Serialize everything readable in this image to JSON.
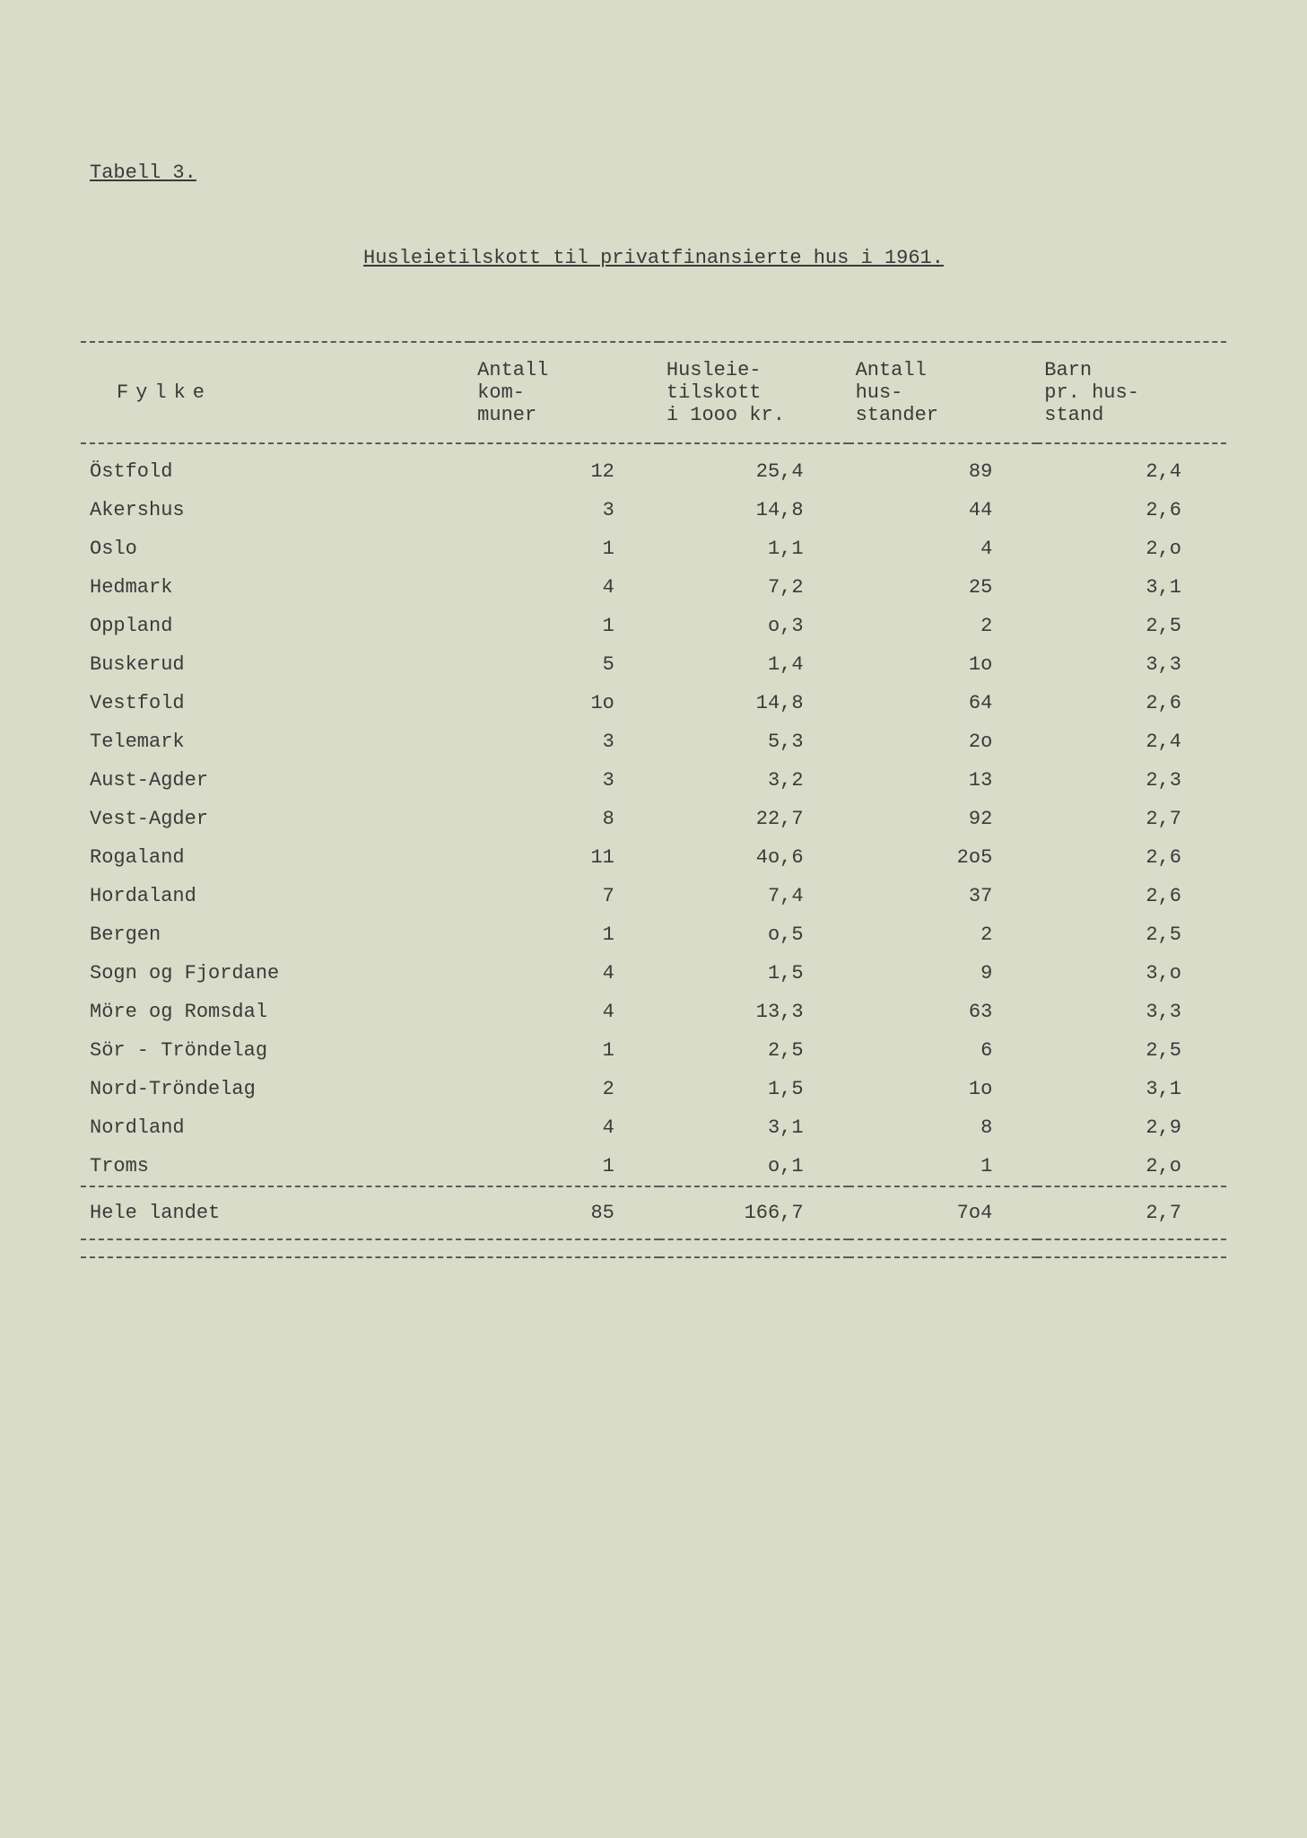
{
  "table_label": "Tabell 3.",
  "title": "Husleietilskott til privatfinansierte hus i 1961.",
  "columns": {
    "fylke": "Fylke",
    "kommuner": "Antall\nkom-\nmuner",
    "tilskott": "Husleie-\ntilskott\ni 1ooo kr.",
    "husstander": "Antall\nhus-\nstander",
    "barn": "Barn\npr. hus-\nstand"
  },
  "rows": [
    {
      "fylke": "Östfold",
      "kommuner": "12",
      "tilskott": "25,4",
      "husstander": "89",
      "barn": "2,4"
    },
    {
      "fylke": "Akershus",
      "kommuner": "3",
      "tilskott": "14,8",
      "husstander": "44",
      "barn": "2,6"
    },
    {
      "fylke": "Oslo",
      "kommuner": "1",
      "tilskott": "1,1",
      "husstander": "4",
      "barn": "2,o"
    },
    {
      "fylke": "Hedmark",
      "kommuner": "4",
      "tilskott": "7,2",
      "husstander": "25",
      "barn": "3,1"
    },
    {
      "fylke": "Oppland",
      "kommuner": "1",
      "tilskott": "o,3",
      "husstander": "2",
      "barn": "2,5"
    },
    {
      "fylke": "Buskerud",
      "kommuner": "5",
      "tilskott": "1,4",
      "husstander": "1o",
      "barn": "3,3"
    },
    {
      "fylke": "Vestfold",
      "kommuner": "1o",
      "tilskott": "14,8",
      "husstander": "64",
      "barn": "2,6"
    },
    {
      "fylke": "Telemark",
      "kommuner": "3",
      "tilskott": "5,3",
      "husstander": "2o",
      "barn": "2,4"
    },
    {
      "fylke": "Aust-Agder",
      "kommuner": "3",
      "tilskott": "3,2",
      "husstander": "13",
      "barn": "2,3"
    },
    {
      "fylke": "Vest-Agder",
      "kommuner": "8",
      "tilskott": "22,7",
      "husstander": "92",
      "barn": "2,7"
    },
    {
      "fylke": "Rogaland",
      "kommuner": "11",
      "tilskott": "4o,6",
      "husstander": "2o5",
      "barn": "2,6"
    },
    {
      "fylke": "Hordaland",
      "kommuner": "7",
      "tilskott": "7,4",
      "husstander": "37",
      "barn": "2,6"
    },
    {
      "fylke": "Bergen",
      "kommuner": "1",
      "tilskott": "o,5",
      "husstander": "2",
      "barn": "2,5"
    },
    {
      "fylke": "Sogn og Fjordane",
      "kommuner": "4",
      "tilskott": "1,5",
      "husstander": "9",
      "barn": "3,o"
    },
    {
      "fylke": "Möre og Romsdal",
      "kommuner": "4",
      "tilskott": "13,3",
      "husstander": "63",
      "barn": "3,3"
    },
    {
      "fylke": "Sör - Tröndelag",
      "kommuner": "1",
      "tilskott": "2,5",
      "husstander": "6",
      "barn": "2,5"
    },
    {
      "fylke": "Nord-Tröndelag",
      "kommuner": "2",
      "tilskott": "1,5",
      "husstander": "1o",
      "barn": "3,1"
    },
    {
      "fylke": "Nordland",
      "kommuner": "4",
      "tilskott": "3,1",
      "husstander": "8",
      "barn": "2,9"
    },
    {
      "fylke": "Troms",
      "kommuner": "1",
      "tilskott": "o,1",
      "husstander": "1",
      "barn": "2,o"
    }
  ],
  "total": {
    "fylke": "Hele landet",
    "kommuner": "85",
    "tilskott": "166,7",
    "husstander": "7o4",
    "barn": "2,7"
  },
  "styling": {
    "background_color": "#d8dcc8",
    "text_color": "#3a3a3a",
    "border_color": "#5a5a5a",
    "font_family": "Courier New",
    "font_size_pt": 16,
    "border_style": "dashed"
  }
}
